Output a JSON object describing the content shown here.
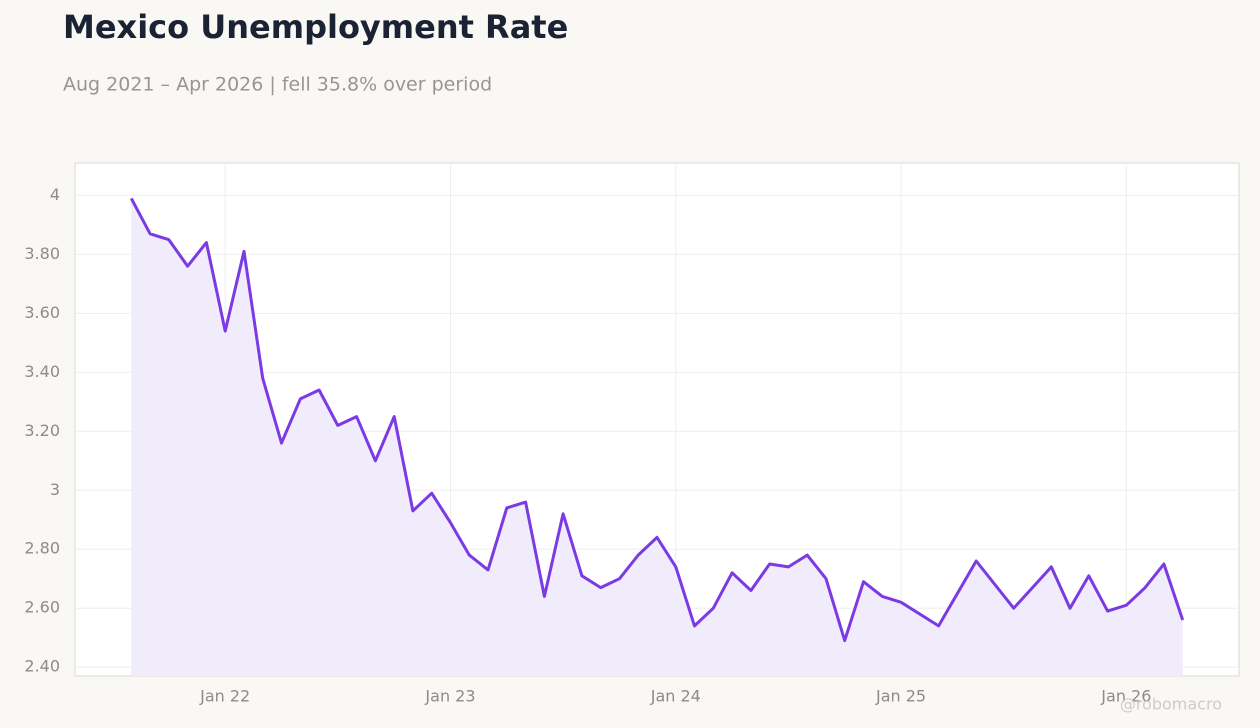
{
  "chart_data": {
    "type": "line",
    "title": "Mexico Unemployment Rate",
    "subtitle": "Aug 2021 – Apr 2026 | fell 35.8% over period",
    "watermark": "@robomacro",
    "x": [
      "2021-08",
      "2021-09",
      "2021-10",
      "2021-11",
      "2021-12",
      "2022-01",
      "2022-02",
      "2022-03",
      "2022-04",
      "2022-05",
      "2022-06",
      "2022-07",
      "2022-08",
      "2022-09",
      "2022-10",
      "2022-11",
      "2022-12",
      "2023-01",
      "2023-02",
      "2023-03",
      "2023-04",
      "2023-05",
      "2023-06",
      "2023-07",
      "2023-08",
      "2023-09",
      "2023-10",
      "2023-11",
      "2023-12",
      "2024-01",
      "2024-02",
      "2024-03",
      "2024-04",
      "2024-05",
      "2024-06",
      "2024-07",
      "2024-08",
      "2024-09",
      "2024-10",
      "2024-11",
      "2024-12",
      "2025-01",
      "2025-03",
      "2025-05",
      "2025-07",
      "2025-08",
      "2025-09",
      "2025-10",
      "2025-11",
      "2025-12",
      "2026-01",
      "2026-02",
      "2026-03",
      "2026-04"
    ],
    "series": [
      {
        "name": "Unemployment Rate",
        "color": "#7b3ae4",
        "area_color": "#f1ecfb",
        "values": [
          3.99,
          3.87,
          3.85,
          3.76,
          3.84,
          3.54,
          3.81,
          3.38,
          3.16,
          3.31,
          3.34,
          3.22,
          3.25,
          3.1,
          3.25,
          2.93,
          2.99,
          2.89,
          2.78,
          2.73,
          2.94,
          2.96,
          2.64,
          2.92,
          2.71,
          2.67,
          2.7,
          2.78,
          2.84,
          2.74,
          2.54,
          2.6,
          2.72,
          2.66,
          2.75,
          2.74,
          2.78,
          2.7,
          2.49,
          2.69,
          2.64,
          2.62,
          2.54,
          2.76,
          2.6,
          2.67,
          2.74,
          2.6,
          2.71,
          2.59,
          2.61,
          2.67,
          2.75,
          2.56
        ]
      }
    ],
    "xlim": [
      "2021-05",
      "2026-07"
    ],
    "xticks": [
      {
        "value": "2022-01",
        "label": "Jan 22"
      },
      {
        "value": "2023-01",
        "label": "Jan 23"
      },
      {
        "value": "2024-01",
        "label": "Jan 24"
      },
      {
        "value": "2025-01",
        "label": "Jan 25"
      },
      {
        "value": "2026-01",
        "label": "Jan 26"
      }
    ],
    "ylim": [
      2.37,
      4.11
    ],
    "yticks": [
      {
        "value": 2.4,
        "label": "2.40"
      },
      {
        "value": 2.6,
        "label": "2.60"
      },
      {
        "value": 2.8,
        "label": "2.80"
      },
      3,
      {
        "value": 3.2,
        "label": "3.20"
      },
      {
        "value": 3.4,
        "label": "3.40"
      },
      {
        "value": 3.6,
        "label": "3.60"
      },
      {
        "value": 3.8,
        "label": "3.80"
      },
      4
    ],
    "grid": true
  }
}
